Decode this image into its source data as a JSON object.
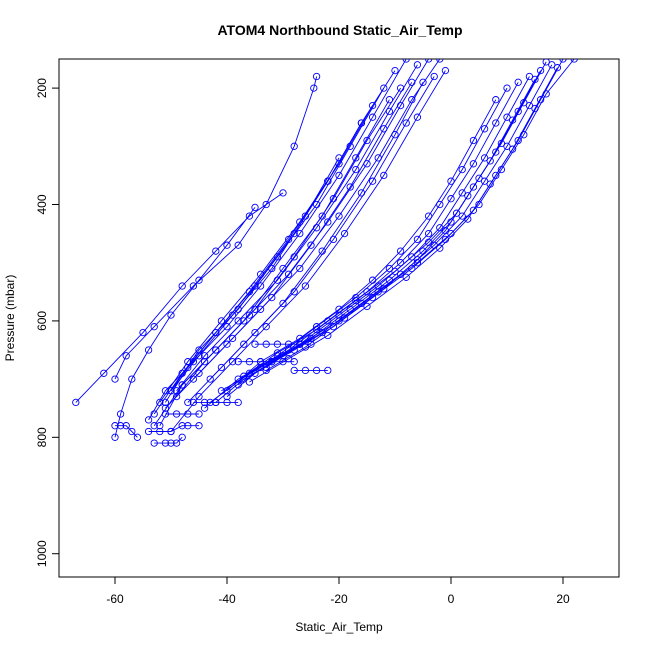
{
  "chart_data": {
    "type": "line",
    "title": "ATOM4 Northbound Static_Air_Temp",
    "xlabel": "Static_Air_Temp",
    "ylabel": "Pressure (mbar)",
    "xlim": [
      -70,
      30
    ],
    "ylim": [
      1040,
      150
    ],
    "y_reversed": true,
    "grid": false,
    "legend": "none",
    "marker": "open-circle",
    "color": "#0000ff",
    "x_ticks": [
      -60,
      -40,
      -20,
      0,
      20
    ],
    "y_ticks": [
      200,
      400,
      600,
      800,
      1000
    ],
    "series": [
      {
        "x": [
          -24.0,
          -24.5,
          -28.0,
          -33.0,
          -38.0,
          -46.0,
          -53.0,
          -58.0,
          -60.0
        ],
        "y": [
          180,
          200,
          300,
          400,
          470,
          540,
          610,
          660,
          700
        ]
      },
      {
        "x": [
          -30.0,
          -36.0,
          -42.0,
          -48.0,
          -55.0,
          -62.0,
          -67.0
        ],
        "y": [
          380,
          420,
          480,
          540,
          620,
          690,
          740
        ]
      },
      {
        "x": [
          -35.0,
          -40.0,
          -45.0,
          -50.0,
          -54.0,
          -57.0,
          -59.0,
          -60.0
        ],
        "y": [
          405,
          470,
          530,
          590,
          650,
          700,
          760,
          800
        ]
      },
      {
        "x": [
          -8.0,
          -14.0,
          -20.0,
          -27.0,
          -34.0,
          -40.0,
          -46.0,
          -51.0,
          -54.0
        ],
        "y": [
          150,
          250,
          350,
          450,
          540,
          610,
          670,
          720,
          770
        ]
      },
      {
        "x": [
          -10.0,
          -16.0,
          -22.0,
          -29.0,
          -36.0,
          -42.0,
          -47.0,
          -51.0
        ],
        "y": [
          170,
          260,
          360,
          460,
          550,
          620,
          680,
          740
        ]
      },
      {
        "x": [
          -6.0,
          -11.0,
          -17.0,
          -24.0,
          -31.0,
          -38.0,
          -44.0,
          -49.0
        ],
        "y": [
          160,
          240,
          340,
          440,
          530,
          600,
          660,
          720
        ]
      },
      {
        "x": [
          -4.0,
          -9.0,
          -15.0,
          -22.0,
          -29.0,
          -36.0,
          -42.0,
          -48.0,
          -53.0
        ],
        "y": [
          150,
          230,
          330,
          430,
          520,
          590,
          650,
          710,
          780
        ]
      },
      {
        "x": [
          -12.0,
          -18.0,
          -24.0,
          -31.0,
          -38.0,
          -45.0,
          -50.0
        ],
        "y": [
          200,
          300,
          400,
          490,
          580,
          650,
          720
        ]
      },
      {
        "x": [
          -2.0,
          -7.0,
          -13.0,
          -20.0,
          -27.0,
          -34.0,
          -40.0,
          -46.0
        ],
        "y": [
          150,
          220,
          320,
          420,
          510,
          580,
          640,
          700
        ]
      },
      {
        "x": [
          -14.0,
          -20.0,
          -27.0,
          -34.0,
          -41.0,
          -47.0,
          -52.0
        ],
        "y": [
          230,
          330,
          430,
          520,
          600,
          670,
          740
        ]
      },
      {
        "x": [
          -1.0,
          -6.0,
          -12.0,
          -19.0,
          -26.0,
          -33.0,
          -39.0,
          -45.0,
          -50.0
        ],
        "y": [
          170,
          250,
          350,
          450,
          540,
          610,
          670,
          730,
          790
        ]
      },
      {
        "x": [
          -7.0,
          -12.0,
          -18.0,
          -25.0,
          -32.0,
          -39.0,
          -45.0,
          -51.0
        ],
        "y": [
          190,
          270,
          370,
          470,
          560,
          630,
          690,
          750
        ]
      },
      {
        "x": [
          -16.0,
          -22.0,
          -28.0,
          -35.0,
          -42.0,
          -48.0,
          -53.0
        ],
        "y": [
          260,
          360,
          450,
          540,
          620,
          690,
          760
        ]
      },
      {
        "x": [
          -3.0,
          -8.0,
          -14.0,
          -21.0,
          -28.0,
          -35.0,
          -41.0,
          -47.0
        ],
        "y": [
          180,
          260,
          360,
          460,
          550,
          620,
          680,
          740
        ]
      },
      {
        "x": [
          -20.0,
          -26.0,
          -32.0,
          -39.0,
          -45.0,
          -50.0
        ],
        "y": [
          320,
          420,
          510,
          590,
          660,
          720
        ]
      },
      {
        "x": [
          -9.0,
          -15.0,
          -21.0,
          -28.0,
          -35.0,
          -42.0,
          -48.0,
          -52.0
        ],
        "y": [
          200,
          290,
          390,
          490,
          580,
          650,
          710,
          780
        ]
      },
      {
        "x": [
          -5.0,
          -10.0,
          -16.0,
          -23.0,
          -30.0,
          -37.0,
          -43.0
        ],
        "y": [
          190,
          280,
          380,
          480,
          570,
          640,
          700
        ]
      },
      {
        "x": [
          -11.0,
          -17.0,
          -23.0,
          -30.0,
          -37.0,
          -44.0,
          -49.0
        ],
        "y": [
          220,
          320,
          420,
          510,
          600,
          670,
          730
        ]
      },
      {
        "x": [
          18.0,
          14.0,
          10.0,
          6.0,
          2.0,
          -3.0,
          -9.0,
          -16.0,
          -23.0,
          -30.0,
          -37.0,
          -42.0
        ],
        "y": [
          160,
          230,
          300,
          360,
          420,
          470,
          520,
          570,
          620,
          660,
          700,
          740
        ]
      },
      {
        "x": [
          16.0,
          12.0,
          8.0,
          4.0,
          0.0,
          -5.0,
          -11.0,
          -18.0,
          -25.0,
          -32.0,
          -38.0
        ],
        "y": [
          170,
          240,
          310,
          370,
          430,
          480,
          530,
          580,
          630,
          670,
          710
        ]
      },
      {
        "x": [
          20.0,
          16.0,
          12.0,
          8.0,
          4.0,
          -1.0,
          -7.0,
          -14.0,
          -21.0,
          -28.0,
          -35.0,
          -40.0
        ],
        "y": [
          150,
          220,
          290,
          350,
          410,
          460,
          510,
          560,
          610,
          650,
          690,
          730
        ]
      },
      {
        "x": [
          14.0,
          10.0,
          6.0,
          2.0,
          -2.0,
          -7.0,
          -13.0,
          -20.0,
          -27.0,
          -34.0,
          -41.0
        ],
        "y": [
          180,
          250,
          320,
          380,
          440,
          490,
          540,
          590,
          640,
          680,
          720
        ]
      },
      {
        "x": [
          22.0,
          17.0,
          13.0,
          9.0,
          5.0,
          0.0,
          -6.0,
          -13.0,
          -20.0,
          -27.0,
          -33.0
        ],
        "y": [
          150,
          210,
          280,
          340,
          400,
          450,
          500,
          550,
          600,
          640,
          680
        ]
      },
      {
        "x": [
          12.0,
          8.0,
          4.0,
          0.0,
          -4.0,
          -9.0,
          -15.0,
          -22.0,
          -29.0,
          -36.0,
          -43.0
        ],
        "y": [
          190,
          260,
          330,
          390,
          450,
          500,
          550,
          600,
          650,
          690,
          740
        ]
      },
      {
        "x": [
          17.0,
          13.0,
          9.0,
          5.0,
          1.0,
          -4.0,
          -10.0,
          -17.0,
          -24.0,
          -31.0,
          -37.0
        ],
        "y": [
          155,
          225,
          295,
          355,
          415,
          465,
          515,
          565,
          615,
          655,
          695
        ]
      },
      {
        "x": [
          10.0,
          6.0,
          2.0,
          -2.0,
          -6.0,
          -11.0,
          -17.0,
          -24.0,
          -31.0,
          -38.0,
          -44.0
        ],
        "y": [
          200,
          270,
          340,
          400,
          460,
          510,
          560,
          610,
          660,
          700,
          750
        ]
      },
      {
        "x": [
          19.0,
          15.0,
          11.0,
          7.0,
          3.0,
          -2.0,
          -8.0,
          -15.0,
          -22.0,
          -29.0,
          -36.0
        ],
        "y": [
          165,
          235,
          305,
          365,
          425,
          475,
          525,
          575,
          625,
          665,
          705
        ]
      },
      {
        "x": [
          8.0,
          4.0,
          0.0,
          -4.0,
          -9.0,
          -14.0,
          -20.0,
          -27.0,
          -34.0,
          -40.0
        ],
        "y": [
          220,
          290,
          360,
          420,
          480,
          530,
          580,
          630,
          670,
          720
        ]
      },
      {
        "x": [
          15.0,
          11.0,
          7.0,
          3.0,
          -1.0,
          -6.0,
          -12.0,
          -19.0,
          -26.0,
          -33.0
        ],
        "y": [
          185,
          255,
          325,
          385,
          445,
          495,
          545,
          595,
          645,
          685
        ]
      },
      {
        "x": [
          -54.0,
          -52.0,
          -50.0,
          -48.0,
          -47.0,
          -45.0
        ],
        "y": [
          790,
          790,
          790,
          780,
          780,
          780
        ]
      },
      {
        "x": [
          -53.0,
          -51.0,
          -50.0,
          -49.0,
          -48.0
        ],
        "y": [
          810,
          810,
          810,
          810,
          800
        ]
      },
      {
        "x": [
          -60.0,
          -59.0,
          -58.0,
          -57.0,
          -56.0
        ],
        "y": [
          780,
          780,
          780,
          790,
          800
        ]
      },
      {
        "x": [
          -35.0,
          -33.0,
          -31.0,
          -29.0,
          -27.0,
          -25.0
        ],
        "y": [
          640,
          640,
          640,
          640,
          640,
          640
        ]
      },
      {
        "x": [
          -38.0,
          -36.0,
          -34.0,
          -32.0,
          -30.0,
          -28.0
        ],
        "y": [
          670,
          670,
          670,
          670,
          670,
          670
        ]
      },
      {
        "x": [
          -46.0,
          -44.0,
          -42.0,
          -40.0,
          -38.0
        ],
        "y": [
          740,
          740,
          740,
          740,
          740
        ]
      },
      {
        "x": [
          -51.0,
          -49.0,
          -47.0,
          -45.0
        ],
        "y": [
          760,
          760,
          760,
          760
        ]
      },
      {
        "x": [
          -28.0,
          -26.0,
          -24.0,
          -22.0
        ],
        "y": [
          685,
          685,
          685,
          685
        ]
      }
    ]
  }
}
